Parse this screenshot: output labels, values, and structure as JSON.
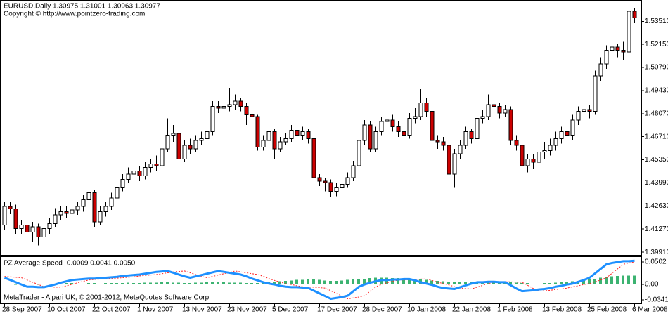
{
  "header": {
    "title": "EURUSD,Daily  1.30975 1.31001 1.30963 1.30977",
    "subtitle": "Copyright © http://www.pointzero-trading.com"
  },
  "footer": "MetaTrader - Alpari UK, © 2001-2012, MetaQuotes Software Corp.",
  "chart_data": [
    {
      "type": "candlestick",
      "up_color": "#ffffff",
      "down_color": "#cc0000",
      "outline_color": "#000000",
      "categories": [
        "28 Sep 2007",
        null,
        null,
        null,
        null,
        null,
        null,
        null,
        "10 Oct 2007",
        null,
        null,
        null,
        null,
        null,
        null,
        null,
        "22 Oct 2007",
        null,
        null,
        null,
        null,
        null,
        null,
        null,
        "1 Nov 2007",
        null,
        null,
        null,
        null,
        null,
        null,
        null,
        "13 Nov 2007",
        null,
        null,
        null,
        null,
        null,
        null,
        null,
        "23 Nov 2007",
        null,
        null,
        null,
        null,
        null,
        null,
        null,
        "5 Dec 2007",
        null,
        null,
        null,
        null,
        null,
        null,
        null,
        "17 Dec 2007",
        null,
        null,
        null,
        null,
        null,
        null,
        null,
        "28 Dec 2007",
        null,
        null,
        null,
        null,
        null,
        null,
        null,
        "10 Jan 2008",
        null,
        null,
        null,
        null,
        null,
        null,
        null,
        "22 Jan 2008",
        null,
        null,
        null,
        null,
        null,
        null,
        null,
        "1 Feb 2008",
        null,
        null,
        null,
        null,
        null,
        null,
        null,
        "13 Feb 2008",
        null,
        null,
        null,
        null,
        null,
        null,
        null,
        "25 Feb 2008",
        null,
        null,
        null,
        null,
        null,
        null,
        null,
        "6 Mar 2008"
      ],
      "open": [
        1.415,
        1.426,
        1.4245,
        1.413,
        1.415,
        1.411,
        1.414,
        1.408,
        1.413,
        1.416,
        1.421,
        1.423,
        1.422,
        1.424,
        1.426,
        1.43,
        1.434,
        1.417,
        1.423,
        1.426,
        1.431,
        1.437,
        1.442,
        1.445,
        1.447,
        1.444,
        1.449,
        1.451,
        1.45,
        1.46,
        1.468,
        1.469,
        1.454,
        1.462,
        1.46,
        1.465,
        1.466,
        1.47,
        1.485,
        1.484,
        1.485,
        1.486,
        1.488,
        1.485,
        1.48,
        1.479,
        1.461,
        1.465,
        1.47,
        1.46,
        1.464,
        1.466,
        1.471,
        1.468,
        1.47,
        1.466,
        1.443,
        1.441,
        1.44,
        1.435,
        1.437,
        1.439,
        1.443,
        1.45,
        1.465,
        1.474,
        1.46,
        1.47,
        1.476,
        1.477,
        1.473,
        1.47,
        1.468,
        1.478,
        1.479,
        1.487,
        1.482,
        1.465,
        1.464,
        1.462,
        1.445,
        1.457,
        1.462,
        1.47,
        1.466,
        1.478,
        1.479,
        1.486,
        1.485,
        1.481,
        1.483,
        1.465,
        1.462,
        1.45,
        1.454,
        1.452,
        1.458,
        1.459,
        1.462,
        1.466,
        1.47,
        1.468,
        1.477,
        1.482,
        1.483,
        1.482,
        1.503,
        1.51,
        1.518,
        1.52,
        1.518,
        1.517,
        1.541
      ],
      "high": [
        1.429,
        1.4285,
        1.427,
        1.418,
        1.418,
        1.417,
        1.416,
        1.416,
        1.419,
        1.425,
        1.426,
        1.426,
        1.427,
        1.429,
        1.433,
        1.437,
        1.436,
        1.426,
        1.429,
        1.434,
        1.44,
        1.445,
        1.449,
        1.45,
        1.45,
        1.452,
        1.454,
        1.456,
        1.463,
        1.478,
        1.474,
        1.471,
        1.465,
        1.466,
        1.468,
        1.47,
        1.473,
        1.488,
        1.488,
        1.487,
        1.4955,
        1.492,
        1.49,
        1.487,
        1.483,
        1.48,
        1.468,
        1.473,
        1.472,
        1.467,
        1.469,
        1.474,
        1.474,
        1.473,
        1.472,
        1.468,
        1.445,
        1.443,
        1.442,
        1.44,
        1.442,
        1.446,
        1.453,
        1.468,
        1.477,
        1.476,
        1.473,
        1.479,
        1.485,
        1.48,
        1.476,
        1.473,
        1.481,
        1.484,
        1.495,
        1.49,
        1.484,
        1.468,
        1.467,
        1.464,
        1.46,
        1.465,
        1.473,
        1.472,
        1.481,
        1.483,
        1.492,
        1.495,
        1.487,
        1.486,
        1.485,
        1.468,
        1.464,
        1.457,
        1.457,
        1.461,
        1.464,
        1.466,
        1.47,
        1.473,
        1.473,
        1.48,
        1.485,
        1.486,
        1.486,
        1.506,
        1.514,
        1.521,
        1.524,
        1.522,
        1.523,
        1.547,
        1.543
      ],
      "low": [
        1.412,
        1.4215,
        1.41,
        1.41,
        1.408,
        1.405,
        1.403,
        1.405,
        1.41,
        1.414,
        1.418,
        1.419,
        1.419,
        1.421,
        1.423,
        1.427,
        1.414,
        1.415,
        1.42,
        1.424,
        1.429,
        1.435,
        1.44,
        1.442,
        1.441,
        1.442,
        1.446,
        1.447,
        1.448,
        1.458,
        1.464,
        1.452,
        1.452,
        1.457,
        1.458,
        1.462,
        1.464,
        1.468,
        1.481,
        1.482,
        1.482,
        1.483,
        1.482,
        1.474,
        1.476,
        1.459,
        1.459,
        1.463,
        1.454,
        1.458,
        1.462,
        1.464,
        1.465,
        1.465,
        1.463,
        1.44,
        1.438,
        1.435,
        1.4315,
        1.432,
        1.434,
        1.437,
        1.441,
        1.448,
        1.462,
        1.458,
        1.458,
        1.468,
        1.473,
        1.47,
        1.467,
        1.465,
        1.466,
        1.475,
        1.477,
        1.479,
        1.462,
        1.46,
        1.459,
        1.44,
        1.437,
        1.454,
        1.46,
        1.463,
        1.464,
        1.475,
        1.477,
        1.48,
        1.478,
        1.479,
        1.462,
        1.459,
        1.444,
        1.446,
        1.448,
        1.449,
        1.454,
        1.456,
        1.459,
        1.463,
        1.464,
        1.465,
        1.474,
        1.479,
        1.478,
        1.48,
        1.5,
        1.507,
        1.515,
        1.514,
        1.512,
        1.515,
        1.534
      ],
      "close": [
        1.426,
        1.4245,
        1.413,
        1.415,
        1.411,
        1.414,
        1.408,
        1.413,
        1.416,
        1.421,
        1.423,
        1.422,
        1.424,
        1.426,
        1.43,
        1.434,
        1.417,
        1.423,
        1.426,
        1.431,
        1.437,
        1.442,
        1.445,
        1.447,
        1.444,
        1.449,
        1.451,
        1.45,
        1.46,
        1.468,
        1.469,
        1.454,
        1.462,
        1.46,
        1.465,
        1.466,
        1.47,
        1.485,
        1.484,
        1.485,
        1.486,
        1.488,
        1.485,
        1.48,
        1.479,
        1.461,
        1.465,
        1.47,
        1.46,
        1.464,
        1.466,
        1.471,
        1.468,
        1.47,
        1.466,
        1.443,
        1.441,
        1.44,
        1.435,
        1.437,
        1.439,
        1.443,
        1.45,
        1.465,
        1.474,
        1.46,
        1.47,
        1.476,
        1.477,
        1.473,
        1.47,
        1.468,
        1.478,
        1.479,
        1.487,
        1.482,
        1.465,
        1.464,
        1.462,
        1.445,
        1.457,
        1.462,
        1.47,
        1.466,
        1.478,
        1.479,
        1.486,
        1.485,
        1.481,
        1.483,
        1.465,
        1.462,
        1.45,
        1.454,
        1.452,
        1.458,
        1.459,
        1.462,
        1.466,
        1.47,
        1.468,
        1.477,
        1.482,
        1.483,
        1.482,
        1.503,
        1.51,
        1.518,
        1.52,
        1.518,
        1.517,
        1.541,
        1.537
      ],
      "ylim": [
        1.3975,
        1.5472
      ],
      "yticks": [
        {
          "value": 1.5351,
          "label": "1.53510"
        },
        {
          "value": 1.5215,
          "label": "1.52150"
        },
        {
          "value": 1.5079,
          "label": "1.50790"
        },
        {
          "value": 1.4943,
          "label": "1.49430"
        },
        {
          "value": 1.4807,
          "label": "1.48070"
        },
        {
          "value": 1.4671,
          "label": "1.46710"
        },
        {
          "value": 1.4535,
          "label": "1.45350"
        },
        {
          "value": 1.4399,
          "label": "1.43990"
        },
        {
          "value": 1.4263,
          "label": "1.42630"
        },
        {
          "value": 1.4127,
          "label": "1.41270"
        },
        {
          "value": 1.3991,
          "label": "1.39910"
        }
      ]
    },
    {
      "type": "indicator",
      "title": "PZ Average Speed -0.0009 0.0041 0.0050",
      "ylim": [
        -0.0437,
        0.0612
      ],
      "yticks": [
        0.0502,
        {
          "value": 0,
          "label": "0.00"
        },
        -0.0341
      ],
      "series": [
        {
          "color": "#1e90ff",
          "style": "line",
          "values": [
            0.015,
            0.01,
            0.005,
            0.0,
            -0.005,
            -0.005,
            -0.006,
            -0.006,
            -0.003,
            0.0,
            0.004,
            0.007,
            0.01,
            0.011,
            0.012,
            0.013,
            0.013,
            0.014,
            0.015,
            0.016,
            0.017,
            0.019,
            0.02,
            0.021,
            0.022,
            0.024,
            0.026,
            0.028,
            0.029,
            0.03,
            0.026,
            0.022,
            0.018,
            0.015,
            0.018,
            0.021,
            0.024,
            0.027,
            0.03,
            0.028,
            0.026,
            0.024,
            0.022,
            0.018,
            0.013,
            0.009,
            0.005,
            0.002,
            0.0,
            -0.003,
            -0.005,
            -0.006,
            -0.006,
            -0.007,
            -0.008,
            -0.014,
            -0.02,
            -0.026,
            -0.032,
            -0.03,
            -0.028,
            -0.025,
            -0.015,
            -0.005,
            0.0,
            0.004,
            0.007,
            0.01,
            0.01,
            0.011,
            0.011,
            0.012,
            0.012,
            0.009,
            0.005,
            0.002,
            -0.001,
            -0.005,
            -0.008,
            -0.009,
            -0.01,
            -0.006,
            -0.002,
            0.002,
            0.005,
            0.005,
            0.006,
            0.006,
            0.005,
            0.005,
            -0.002,
            -0.009,
            -0.015,
            -0.014,
            -0.013,
            -0.011,
            -0.01,
            -0.008,
            -0.005,
            -0.003,
            0.0,
            0.002,
            0.006,
            0.01,
            0.015,
            0.025,
            0.035,
            0.045,
            0.048,
            0.05,
            0.052,
            0.052,
            0.053
          ]
        },
        {
          "color": "#ff2020",
          "style": "dotted",
          "values": [
            0.018,
            0.017,
            0.016,
            0.015,
            0.01,
            0.005,
            0.0,
            -0.005,
            -0.005,
            -0.006,
            -0.006,
            -0.003,
            0.0,
            0.004,
            0.007,
            0.01,
            0.011,
            0.012,
            0.013,
            0.013,
            0.014,
            0.015,
            0.016,
            0.017,
            0.019,
            0.02,
            0.021,
            0.022,
            0.024,
            0.026,
            0.028,
            0.029,
            0.03,
            0.026,
            0.022,
            0.018,
            0.015,
            0.018,
            0.021,
            0.024,
            0.027,
            0.03,
            0.028,
            0.026,
            0.024,
            0.022,
            0.018,
            0.013,
            0.009,
            0.005,
            0.002,
            0.0,
            -0.003,
            -0.005,
            -0.006,
            -0.006,
            -0.007,
            -0.008,
            -0.014,
            -0.02,
            -0.026,
            -0.032,
            -0.03,
            -0.028,
            -0.025,
            -0.015,
            -0.005,
            0.0,
            0.004,
            0.007,
            0.01,
            0.01,
            0.011,
            0.011,
            0.012,
            0.012,
            0.009,
            0.005,
            0.002,
            -0.001,
            -0.005,
            -0.008,
            -0.009,
            -0.01,
            -0.006,
            -0.002,
            0.002,
            0.005,
            0.005,
            0.006,
            0.006,
            0.005,
            0.005,
            -0.002,
            -0.009,
            -0.015,
            -0.014,
            -0.013,
            -0.011,
            -0.01,
            -0.008,
            -0.005,
            -0.003,
            0.0,
            0.002,
            0.006,
            0.01,
            0.015,
            0.025,
            0.035,
            0.045,
            0.048,
            0.05
          ]
        },
        {
          "color": "#3cb371",
          "style": "histogram",
          "values": [
            0.002,
            0.002,
            0.001,
            0.001,
            0.002,
            0.002,
            0.001,
            0.002,
            0.002,
            0.002,
            0.002,
            0.003,
            0.003,
            0.002,
            0.002,
            0.003,
            0.003,
            0.002,
            0.003,
            0.003,
            0.003,
            0.003,
            0.004,
            0.003,
            0.003,
            0.004,
            0.004,
            0.004,
            0.005,
            0.005,
            0.004,
            0.004,
            0.003,
            0.003,
            0.004,
            0.004,
            0.005,
            0.005,
            0.005,
            0.005,
            0.004,
            0.004,
            0.004,
            0.003,
            0.003,
            0.003,
            0.004,
            0.005,
            0.006,
            0.007,
            0.008,
            0.009,
            0.01,
            0.01,
            0.011,
            0.011,
            0.01,
            0.009,
            0.008,
            0.008,
            0.009,
            0.01,
            0.011,
            0.012,
            0.013,
            0.014,
            0.015,
            0.015,
            0.015,
            0.014,
            0.014,
            0.013,
            0.013,
            0.012,
            0.011,
            0.01,
            0.009,
            0.008,
            0.007,
            0.006,
            0.005,
            0.005,
            0.006,
            0.006,
            0.006,
            0.006,
            0.007,
            0.007,
            0.006,
            0.006,
            0.005,
            0.004,
            0.003,
            0.003,
            0.002,
            0.002,
            0.003,
            0.003,
            0.004,
            0.005,
            0.006,
            0.007,
            0.008,
            0.01,
            0.012,
            0.013,
            0.015,
            0.017,
            0.018,
            0.019,
            0.02,
            0.02,
            0.02
          ]
        }
      ]
    }
  ]
}
